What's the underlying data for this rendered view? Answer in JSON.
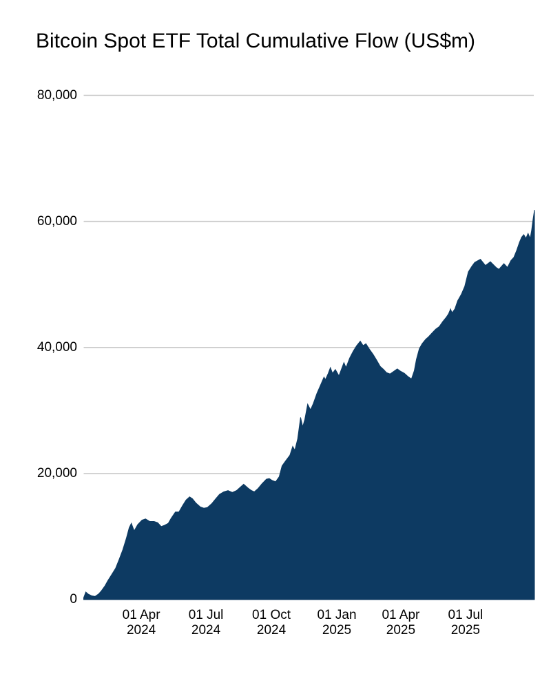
{
  "chart_data": {
    "type": "area",
    "title": "Bitcoin Spot ETF Total Cumulative Flow (US$m)",
    "xlabel": "",
    "ylabel": "",
    "legend": "none",
    "grid": true,
    "colors": {
      "area_fill": "#0d3a62",
      "grid_line": "#c8c8c8",
      "text": "#000000",
      "background": "#ffffff"
    },
    "x_domain": [
      "2024-01-11",
      "2025-10-06"
    ],
    "y_domain": [
      0,
      80000
    ],
    "y_ticks": [
      {
        "value": 0,
        "label": "0"
      },
      {
        "value": 20000,
        "label": "20,000"
      },
      {
        "value": 40000,
        "label": "40,000"
      },
      {
        "value": 60000,
        "label": "60,000"
      },
      {
        "value": 80000,
        "label": "80,000"
      }
    ],
    "x_ticks": [
      {
        "date": "2024-04-01",
        "line1": "01 Apr",
        "line2": "2024"
      },
      {
        "date": "2024-07-01",
        "line1": "01 Jul",
        "line2": "2024"
      },
      {
        "date": "2024-10-01",
        "line1": "01 Oct",
        "line2": "2024"
      },
      {
        "date": "2025-01-01",
        "line1": "01 Jan",
        "line2": "2025"
      },
      {
        "date": "2025-04-01",
        "line1": "01 Apr",
        "line2": "2025"
      },
      {
        "date": "2025-07-01",
        "line1": "01 Jul",
        "line2": "2025"
      }
    ],
    "series": [
      {
        "name": "Total cumulative flow (US$m)",
        "points": [
          [
            "2024-01-11",
            300
          ],
          [
            "2024-01-14",
            1200
          ],
          [
            "2024-01-17",
            900
          ],
          [
            "2024-01-22",
            600
          ],
          [
            "2024-01-27",
            500
          ],
          [
            "2024-02-01",
            900
          ],
          [
            "2024-02-05",
            1400
          ],
          [
            "2024-02-10",
            2200
          ],
          [
            "2024-02-14",
            3000
          ],
          [
            "2024-02-19",
            3900
          ],
          [
            "2024-02-25",
            5000
          ],
          [
            "2024-03-01",
            6400
          ],
          [
            "2024-03-06",
            7900
          ],
          [
            "2024-03-11",
            9700
          ],
          [
            "2024-03-15",
            11400
          ],
          [
            "2024-03-18",
            12100
          ],
          [
            "2024-03-22",
            10900
          ],
          [
            "2024-03-27",
            11900
          ],
          [
            "2024-04-02",
            12600
          ],
          [
            "2024-04-07",
            12800
          ],
          [
            "2024-04-13",
            12400
          ],
          [
            "2024-04-19",
            12400
          ],
          [
            "2024-04-24",
            12200
          ],
          [
            "2024-04-29",
            11600
          ],
          [
            "2024-05-04",
            11800
          ],
          [
            "2024-05-09",
            12100
          ],
          [
            "2024-05-13",
            12900
          ],
          [
            "2024-05-19",
            13900
          ],
          [
            "2024-05-24",
            13900
          ],
          [
            "2024-05-29",
            14900
          ],
          [
            "2024-06-03",
            15800
          ],
          [
            "2024-06-08",
            16300
          ],
          [
            "2024-06-12",
            16000
          ],
          [
            "2024-06-17",
            15300
          ],
          [
            "2024-06-23",
            14700
          ],
          [
            "2024-06-28",
            14500
          ],
          [
            "2024-07-03",
            14600
          ],
          [
            "2024-07-09",
            15200
          ],
          [
            "2024-07-14",
            15900
          ],
          [
            "2024-07-20",
            16700
          ],
          [
            "2024-07-26",
            17100
          ],
          [
            "2024-08-01",
            17300
          ],
          [
            "2024-08-07",
            17000
          ],
          [
            "2024-08-13",
            17300
          ],
          [
            "2024-08-18",
            17800
          ],
          [
            "2024-08-23",
            18300
          ],
          [
            "2024-08-29",
            17700
          ],
          [
            "2024-09-03",
            17300
          ],
          [
            "2024-09-07",
            17100
          ],
          [
            "2024-09-12",
            17600
          ],
          [
            "2024-09-18",
            18400
          ],
          [
            "2024-09-24",
            19100
          ],
          [
            "2024-09-28",
            19200
          ],
          [
            "2024-10-02",
            18900
          ],
          [
            "2024-10-07",
            18700
          ],
          [
            "2024-10-12",
            19500
          ],
          [
            "2024-10-16",
            21200
          ],
          [
            "2024-10-21",
            22000
          ],
          [
            "2024-10-27",
            22900
          ],
          [
            "2024-10-31",
            24300
          ],
          [
            "2024-11-03",
            23700
          ],
          [
            "2024-11-07",
            25500
          ],
          [
            "2024-11-11",
            28900
          ],
          [
            "2024-11-14",
            27400
          ],
          [
            "2024-11-17",
            28600
          ],
          [
            "2024-11-21",
            31000
          ],
          [
            "2024-11-25",
            30100
          ],
          [
            "2024-11-29",
            31100
          ],
          [
            "2024-12-04",
            32700
          ],
          [
            "2024-12-09",
            34000
          ],
          [
            "2024-12-12",
            34800
          ],
          [
            "2024-12-14",
            35300
          ],
          [
            "2024-12-16",
            34900
          ],
          [
            "2024-12-20",
            35900
          ],
          [
            "2024-12-23",
            36800
          ],
          [
            "2024-12-26",
            35900
          ],
          [
            "2024-12-30",
            36500
          ],
          [
            "2025-01-04",
            35500
          ],
          [
            "2025-01-09",
            37000
          ],
          [
            "2025-01-11",
            37600
          ],
          [
            "2025-01-14",
            36800
          ],
          [
            "2025-01-19",
            38300
          ],
          [
            "2025-01-24",
            39400
          ],
          [
            "2025-01-29",
            40300
          ],
          [
            "2025-02-03",
            41000
          ],
          [
            "2025-02-07",
            40300
          ],
          [
            "2025-02-11",
            40600
          ],
          [
            "2025-02-16",
            39700
          ],
          [
            "2025-02-21",
            38900
          ],
          [
            "2025-02-26",
            38000
          ],
          [
            "2025-03-03",
            37000
          ],
          [
            "2025-03-08",
            36500
          ],
          [
            "2025-03-12",
            36000
          ],
          [
            "2025-03-17",
            35800
          ],
          [
            "2025-03-22",
            36200
          ],
          [
            "2025-03-27",
            36600
          ],
          [
            "2025-04-01",
            36200
          ],
          [
            "2025-04-06",
            35900
          ],
          [
            "2025-04-11",
            35400
          ],
          [
            "2025-04-16",
            35000
          ],
          [
            "2025-04-20",
            36300
          ],
          [
            "2025-04-23",
            38100
          ],
          [
            "2025-04-27",
            39800
          ],
          [
            "2025-05-01",
            40600
          ],
          [
            "2025-05-06",
            41300
          ],
          [
            "2025-05-10",
            41700
          ],
          [
            "2025-05-15",
            42300
          ],
          [
            "2025-05-20",
            42900
          ],
          [
            "2025-05-25",
            43300
          ],
          [
            "2025-05-30",
            44100
          ],
          [
            "2025-06-04",
            44800
          ],
          [
            "2025-06-07",
            45300
          ],
          [
            "2025-06-10",
            46100
          ],
          [
            "2025-06-12",
            45500
          ],
          [
            "2025-06-16",
            46100
          ],
          [
            "2025-06-20",
            47400
          ],
          [
            "2025-06-25",
            48400
          ],
          [
            "2025-06-30",
            49700
          ],
          [
            "2025-07-05",
            52000
          ],
          [
            "2025-07-10",
            52900
          ],
          [
            "2025-07-14",
            53500
          ],
          [
            "2025-07-22",
            54000
          ],
          [
            "2025-07-29",
            53000
          ],
          [
            "2025-08-05",
            53600
          ],
          [
            "2025-08-13",
            52700
          ],
          [
            "2025-08-17",
            52400
          ],
          [
            "2025-08-24",
            53300
          ],
          [
            "2025-08-29",
            52700
          ],
          [
            "2025-09-03",
            53800
          ],
          [
            "2025-09-07",
            54300
          ],
          [
            "2025-09-11",
            55400
          ],
          [
            "2025-09-15",
            56700
          ],
          [
            "2025-09-18",
            57500
          ],
          [
            "2025-09-21",
            57900
          ],
          [
            "2025-09-24",
            57300
          ],
          [
            "2025-09-27",
            58100
          ],
          [
            "2025-09-30",
            57300
          ],
          [
            "2025-10-02",
            58600
          ],
          [
            "2025-10-04",
            60300
          ],
          [
            "2025-10-06",
            61800
          ]
        ]
      }
    ]
  }
}
